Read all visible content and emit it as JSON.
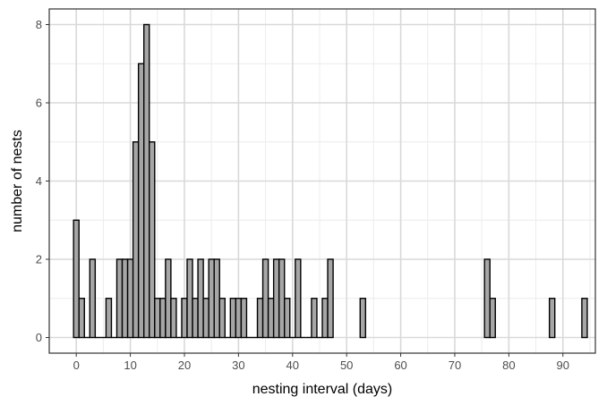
{
  "chart_data": {
    "type": "bar",
    "title": "",
    "xlabel": "nesting interval (days)",
    "ylabel": "number of nests",
    "xlim": [
      -5,
      96
    ],
    "ylim": [
      -0.4,
      8.4
    ],
    "bin_width": 1,
    "x_ticks": [
      0,
      10,
      20,
      30,
      40,
      50,
      60,
      70,
      80,
      90
    ],
    "y_ticks": [
      0,
      2,
      4,
      6,
      8
    ],
    "grid": true,
    "legend": "none",
    "bars": [
      {
        "x": 0,
        "count": 3
      },
      {
        "x": 1,
        "count": 1
      },
      {
        "x": 2,
        "count": 0
      },
      {
        "x": 3,
        "count": 2
      },
      {
        "x": 4,
        "count": 0
      },
      {
        "x": 5,
        "count": 0
      },
      {
        "x": 6,
        "count": 1
      },
      {
        "x": 7,
        "count": 0
      },
      {
        "x": 8,
        "count": 2
      },
      {
        "x": 9,
        "count": 2
      },
      {
        "x": 10,
        "count": 2
      },
      {
        "x": 11,
        "count": 5
      },
      {
        "x": 12,
        "count": 7
      },
      {
        "x": 13,
        "count": 8
      },
      {
        "x": 14,
        "count": 5
      },
      {
        "x": 15,
        "count": 1
      },
      {
        "x": 16,
        "count": 1
      },
      {
        "x": 17,
        "count": 2
      },
      {
        "x": 18,
        "count": 1
      },
      {
        "x": 19,
        "count": 0
      },
      {
        "x": 20,
        "count": 1
      },
      {
        "x": 21,
        "count": 2
      },
      {
        "x": 22,
        "count": 1
      },
      {
        "x": 23,
        "count": 2
      },
      {
        "x": 24,
        "count": 1
      },
      {
        "x": 25,
        "count": 2
      },
      {
        "x": 26,
        "count": 2
      },
      {
        "x": 27,
        "count": 1
      },
      {
        "x": 28,
        "count": 0
      },
      {
        "x": 29,
        "count": 1
      },
      {
        "x": 30,
        "count": 1
      },
      {
        "x": 31,
        "count": 1
      },
      {
        "x": 32,
        "count": 0
      },
      {
        "x": 33,
        "count": 0
      },
      {
        "x": 34,
        "count": 1
      },
      {
        "x": 35,
        "count": 2
      },
      {
        "x": 36,
        "count": 1
      },
      {
        "x": 37,
        "count": 2
      },
      {
        "x": 38,
        "count": 2
      },
      {
        "x": 39,
        "count": 1
      },
      {
        "x": 40,
        "count": 0
      },
      {
        "x": 41,
        "count": 2
      },
      {
        "x": 42,
        "count": 0
      },
      {
        "x": 43,
        "count": 0
      },
      {
        "x": 44,
        "count": 1
      },
      {
        "x": 45,
        "count": 0
      },
      {
        "x": 46,
        "count": 1
      },
      {
        "x": 47,
        "count": 2
      },
      {
        "x": 53,
        "count": 1
      },
      {
        "x": 76,
        "count": 2
      },
      {
        "x": 77,
        "count": 1
      },
      {
        "x": 88,
        "count": 1
      },
      {
        "x": 94,
        "count": 1
      }
    ],
    "colors": {
      "bar_fill": "#a6a6a6",
      "bar_stroke": "#000000",
      "panel_background": "#ffffff",
      "panel_border": "#333333",
      "grid_major": "#d9d9d9",
      "grid_minor": "#ececec",
      "tick_label": "#4d4d4d"
    }
  }
}
